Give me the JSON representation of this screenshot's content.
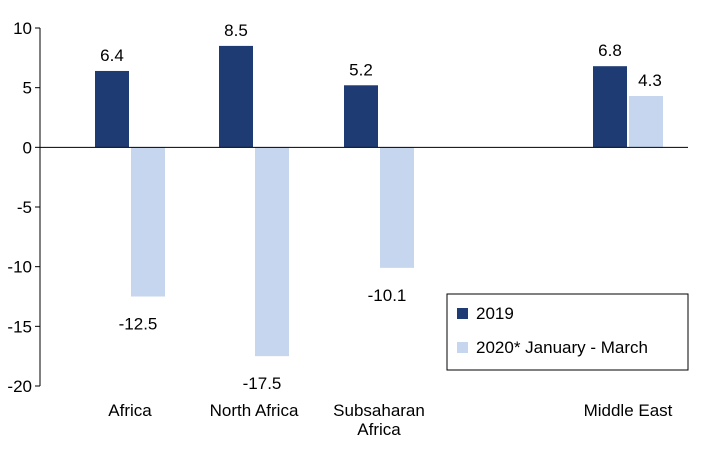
{
  "chart_data": {
    "type": "bar",
    "categories": [
      "Africa",
      "North Africa",
      "Subsaharan Africa",
      "Middle East"
    ],
    "category_label_lines": [
      [
        "Africa"
      ],
      [
        "North Africa"
      ],
      [
        "Subsaharan",
        "Africa"
      ],
      [
        "Middle East"
      ]
    ],
    "series": [
      {
        "name": "2019",
        "values": [
          6.4,
          8.5,
          5.2,
          6.8
        ],
        "color": "#1f3b73"
      },
      {
        "name": "2020* January - March",
        "values": [
          -12.5,
          -17.5,
          -10.1,
          4.3
        ],
        "color": "#c6d6ee"
      }
    ],
    "data_labels": [
      [
        "6.4",
        "8.5",
        "5.2",
        "6.8"
      ],
      [
        "-12.5",
        "-17.5",
        "-10.1",
        "4.3"
      ]
    ],
    "y_ticks": [
      "10",
      "5",
      "0",
      "-5",
      "-10",
      "-15",
      "-20"
    ],
    "ylim": [
      -20,
      10
    ],
    "title": "",
    "xlabel": "",
    "ylabel": "",
    "legend_position": "bottom-right",
    "grid": false
  }
}
